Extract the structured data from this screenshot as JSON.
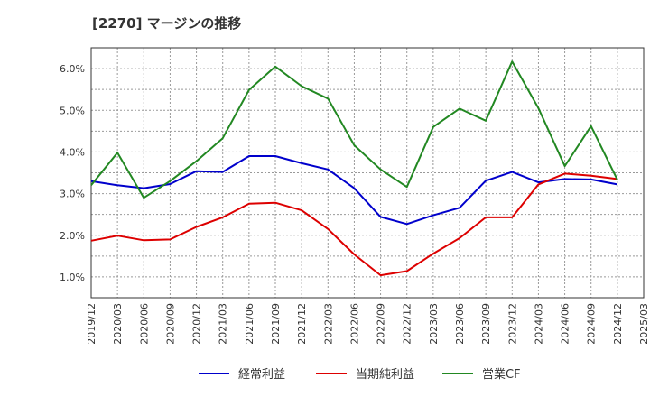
{
  "chart_data": {
    "type": "line",
    "title": "[2270]  マージンの推移",
    "xlabel": "",
    "ylabel": "",
    "ylim": [
      0.5,
      6.5
    ],
    "y_ticks": [
      "1.0%",
      "2.0%",
      "3.0%",
      "4.0%",
      "5.0%",
      "6.0%"
    ],
    "y_tick_values": [
      1.0,
      2.0,
      3.0,
      4.0,
      5.0,
      6.0
    ],
    "categories": [
      "2019/12",
      "2020/03",
      "2020/06",
      "2020/09",
      "2020/12",
      "2021/03",
      "2021/06",
      "2021/09",
      "2021/12",
      "2022/03",
      "2022/06",
      "2022/09",
      "2022/12",
      "2023/03",
      "2023/06",
      "2023/09",
      "2023/12",
      "2024/03",
      "2024/06",
      "2024/09",
      "2024/12",
      "2025/03"
    ],
    "grid": true,
    "legend_position": "bottom",
    "series": [
      {
        "name": "経常利益",
        "color": "#0000cc",
        "values": [
          3.3,
          3.2,
          3.13,
          3.23,
          3.54,
          3.52,
          3.9,
          3.9,
          3.73,
          3.58,
          3.13,
          2.44,
          2.27,
          2.48,
          2.66,
          3.31,
          3.52,
          3.27,
          3.35,
          3.34,
          3.22,
          null
        ]
      },
      {
        "name": "当期純利益",
        "color": "#dd0000",
        "values": [
          1.87,
          1.99,
          1.88,
          1.9,
          2.2,
          2.43,
          2.76,
          2.78,
          2.6,
          2.15,
          1.54,
          1.04,
          1.14,
          1.56,
          1.93,
          2.43,
          2.43,
          3.22,
          3.48,
          3.43,
          3.35,
          null
        ]
      },
      {
        "name": "営業CF",
        "color": "#228822",
        "values": [
          3.2,
          3.98,
          2.9,
          3.3,
          3.78,
          4.33,
          5.49,
          6.05,
          5.58,
          5.28,
          4.16,
          3.58,
          3.16,
          4.6,
          5.04,
          4.75,
          6.17,
          5.05,
          3.66,
          4.62,
          3.33,
          null
        ]
      }
    ]
  }
}
